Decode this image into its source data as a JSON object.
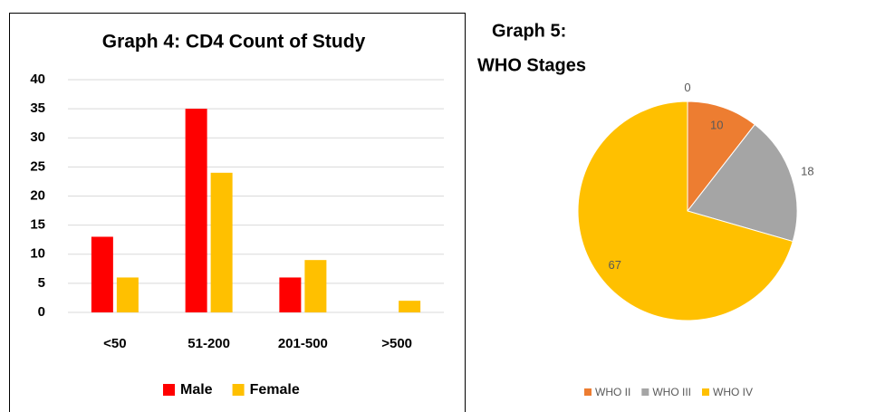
{
  "chart_data": [
    {
      "type": "bar",
      "title": "Graph 4: CD4 Count of Study",
      "categories": [
        "<50",
        "51-200",
        "201-500",
        ">500"
      ],
      "series": [
        {
          "name": "Male",
          "color": "#ff0000",
          "values": [
            13,
            35,
            6,
            0
          ]
        },
        {
          "name": "Female",
          "color": "#ffc000",
          "values": [
            6,
            24,
            9,
            2
          ]
        }
      ],
      "ylim": [
        0,
        40
      ],
      "yticks": [
        0,
        5,
        10,
        15,
        20,
        25,
        30,
        35,
        40
      ],
      "grid": true,
      "legend": "bottom"
    },
    {
      "type": "pie",
      "title": [
        "Graph 5:",
        "WHO Stages"
      ],
      "categories": [
        null,
        "WHO II",
        "WHO III",
        "WHO IV"
      ],
      "values": [
        0,
        10,
        18,
        67
      ],
      "colors": [
        "#5b9bd5",
        "#ed7d31",
        "#a5a5a5",
        "#ffc000"
      ],
      "legend": "bottom"
    }
  ]
}
